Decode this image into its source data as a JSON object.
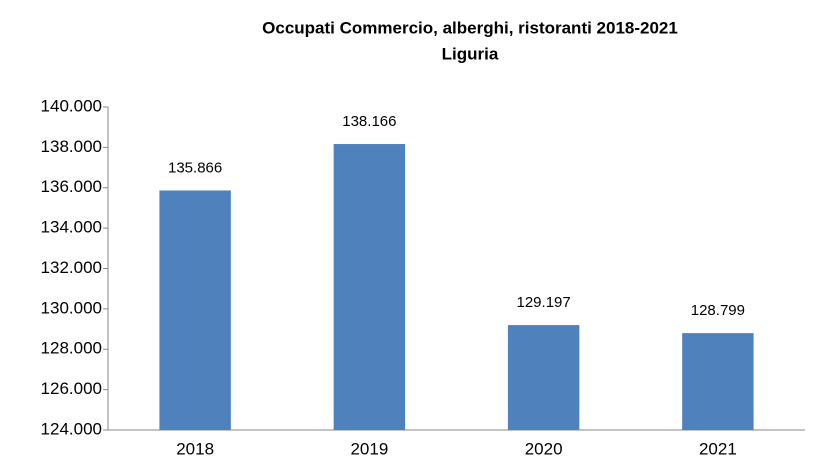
{
  "chart_data": {
    "type": "bar",
    "title": "Occupati Commercio, alberghi, ristoranti 2018-2021",
    "subtitle": "Liguria",
    "categories": [
      "2018",
      "2019",
      "2020",
      "2021"
    ],
    "values": [
      135866,
      138166,
      129197,
      128799
    ],
    "value_labels": [
      "135.866",
      "138.166",
      "129.197",
      "128.799"
    ],
    "color": "#4f81bd",
    "ylim": [
      124000,
      140000
    ],
    "yticks": [
      {
        "value": 124000,
        "label": "124.000"
      },
      {
        "value": 126000,
        "label": "126.000"
      },
      {
        "value": 128000,
        "label": "128.000"
      },
      {
        "value": 130000,
        "label": "130.000"
      },
      {
        "value": 132000,
        "label": "132.000"
      },
      {
        "value": 134000,
        "label": "134.000"
      },
      {
        "value": 136000,
        "label": "136.000"
      },
      {
        "value": 138000,
        "label": "138.000"
      },
      {
        "value": 140000,
        "label": "140.000"
      }
    ],
    "grid": false
  }
}
